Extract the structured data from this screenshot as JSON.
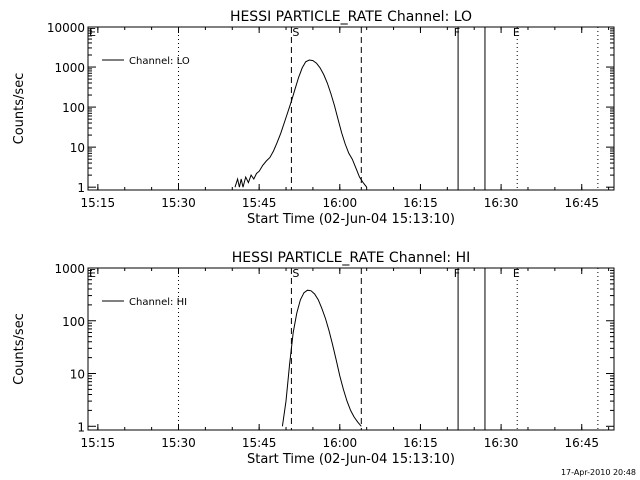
{
  "chart_data": [
    {
      "type": "line",
      "title": "HESSI PARTICLE_RATE Channel: LO",
      "xlabel": "Start Time (02-Jun-04 15:13:10)",
      "ylabel": "Counts/sec",
      "yscale": "log",
      "xlim": [
        "15:13:10",
        "16:51:00"
      ],
      "ylim": [
        0.85,
        10000
      ],
      "x_ticks": [
        "15:15",
        "15:30",
        "15:45",
        "16:00",
        "16:15",
        "16:30",
        "16:45"
      ],
      "y_ticks": [
        "1",
        "10",
        "100",
        "1000",
        "10000"
      ],
      "legend": {
        "placement": "top-left",
        "label": "Channel: LO"
      },
      "marker_letters": {
        "E": "15:13:10",
        "S": "15:51:00",
        "F": "16:21:00",
        "E2": "16:32:00"
      },
      "vlines": {
        "dotted": [
          "15:30",
          "16:33",
          "16:48"
        ],
        "dashed": [
          "15:51",
          "16:04"
        ],
        "solid": [
          "16:22",
          "16:27"
        ]
      },
      "series": [
        {
          "name": "Channel: LO",
          "x": [
            "15:40:30",
            "15:41:00",
            "15:41:20",
            "15:41:40",
            "15:42:00",
            "15:42:30",
            "15:43:00",
            "15:43:30",
            "15:44:00",
            "15:44:30",
            "15:45:00",
            "15:45:40",
            "15:46:20",
            "15:47:00",
            "15:47:40",
            "15:48:20",
            "15:49:00",
            "15:49:40",
            "15:50:20",
            "15:51:00",
            "15:51:40",
            "15:52:20",
            "15:53:00",
            "15:53:40",
            "15:54:20",
            "15:55:00",
            "15:55:40",
            "15:56:20",
            "15:57:00",
            "15:57:40",
            "15:58:20",
            "15:59:00",
            "15:59:40",
            "16:00:20",
            "16:01:00",
            "16:01:40",
            "16:02:20",
            "16:03:00",
            "16:03:40",
            "16:04:20",
            "16:05:00"
          ],
          "y": [
            1,
            1.6,
            1,
            1.6,
            1,
            1.8,
            1.3,
            2,
            1.6,
            2.2,
            2.5,
            3.5,
            4.5,
            5.5,
            8,
            13,
            22,
            40,
            75,
            140,
            280,
            550,
            950,
            1350,
            1500,
            1450,
            1250,
            950,
            650,
            400,
            220,
            110,
            50,
            23,
            12,
            7,
            5,
            3,
            1.8,
            1.3,
            1
          ]
        }
      ]
    },
    {
      "type": "line",
      "title": "HESSI PARTICLE_RATE Channel: HI",
      "xlabel": "Start Time (02-Jun-04 15:13:10)",
      "ylabel": "Counts/sec",
      "yscale": "log",
      "xlim": [
        "15:13:10",
        "16:51:00"
      ],
      "ylim": [
        0.85,
        1000
      ],
      "x_ticks": [
        "15:15",
        "15:30",
        "15:45",
        "16:00",
        "16:15",
        "16:30",
        "16:45"
      ],
      "y_ticks": [
        "1",
        "10",
        "100",
        "1000"
      ],
      "legend": {
        "placement": "top-left",
        "label": "Channel: HI"
      },
      "marker_letters": {
        "E": "15:13:10",
        "S": "15:51:00",
        "F": "16:21:00",
        "E2": "16:32:00"
      },
      "vlines": {
        "dotted": [
          "15:30",
          "16:33",
          "16:48"
        ],
        "dashed": [
          "15:51",
          "16:04"
        ],
        "solid": [
          "16:22",
          "16:27"
        ]
      },
      "series": [
        {
          "name": "Channel: HI",
          "x": [
            "15:49:20",
            "15:50:00",
            "15:50:40",
            "15:51:20",
            "15:52:00",
            "15:52:40",
            "15:53:20",
            "15:54:00",
            "15:54:40",
            "15:55:20",
            "15:56:00",
            "15:56:40",
            "15:57:20",
            "15:58:00",
            "15:58:40",
            "15:59:20",
            "16:00:00",
            "16:00:40",
            "16:01:20",
            "16:02:00",
            "16:02:40",
            "16:03:20",
            "16:04:00"
          ],
          "y": [
            1,
            3,
            15,
            60,
            140,
            250,
            340,
            380,
            370,
            320,
            250,
            170,
            110,
            65,
            35,
            18,
            9,
            5,
            3,
            2,
            1.5,
            1.2,
            1
          ]
        }
      ]
    }
  ],
  "timestamp": "17-Apr-2010 20:48"
}
